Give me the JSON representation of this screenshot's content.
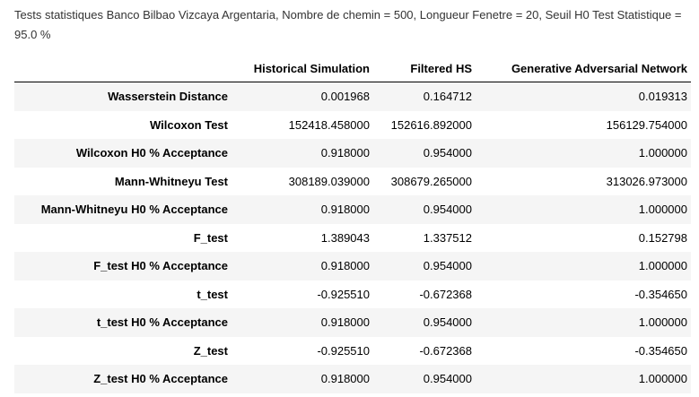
{
  "caption": "Tests statistiques Banco Bilbao Vizcaya Argentaria, Nombre de chemin = 500, Longueur Fenetre = 20, Seuil H0 Test Statistique = 95.0 %",
  "columns": [
    "",
    "Historical Simulation",
    "Filtered HS",
    "Generative Adversarial Network"
  ],
  "rows": [
    {
      "label": "Wasserstein Distance",
      "values": [
        "0.001968",
        "0.164712",
        "0.019313"
      ]
    },
    {
      "label": "Wilcoxon Test",
      "values": [
        "152418.458000",
        "152616.892000",
        "156129.754000"
      ]
    },
    {
      "label": "Wilcoxon H0 % Acceptance",
      "values": [
        "0.918000",
        "0.954000",
        "1.000000"
      ]
    },
    {
      "label": "Mann-Whitneyu Test",
      "values": [
        "308189.039000",
        "308679.265000",
        "313026.973000"
      ]
    },
    {
      "label": "Mann-Whitneyu H0 % Acceptance",
      "values": [
        "0.918000",
        "0.954000",
        "1.000000"
      ]
    },
    {
      "label": "F_test",
      "values": [
        "1.389043",
        "1.337512",
        "0.152798"
      ]
    },
    {
      "label": "F_test H0 % Acceptance",
      "values": [
        "0.918000",
        "0.954000",
        "1.000000"
      ]
    },
    {
      "label": "t_test",
      "values": [
        "-0.925510",
        "-0.672368",
        "-0.354650"
      ]
    },
    {
      "label": "t_test H0 % Acceptance",
      "values": [
        "0.918000",
        "0.954000",
        "1.000000"
      ]
    },
    {
      "label": "Z_test",
      "values": [
        "-0.925510",
        "-0.672368",
        "-0.354650"
      ]
    },
    {
      "label": "Z_test H0 % Acceptance",
      "values": [
        "0.918000",
        "0.954000",
        "1.000000"
      ]
    }
  ]
}
